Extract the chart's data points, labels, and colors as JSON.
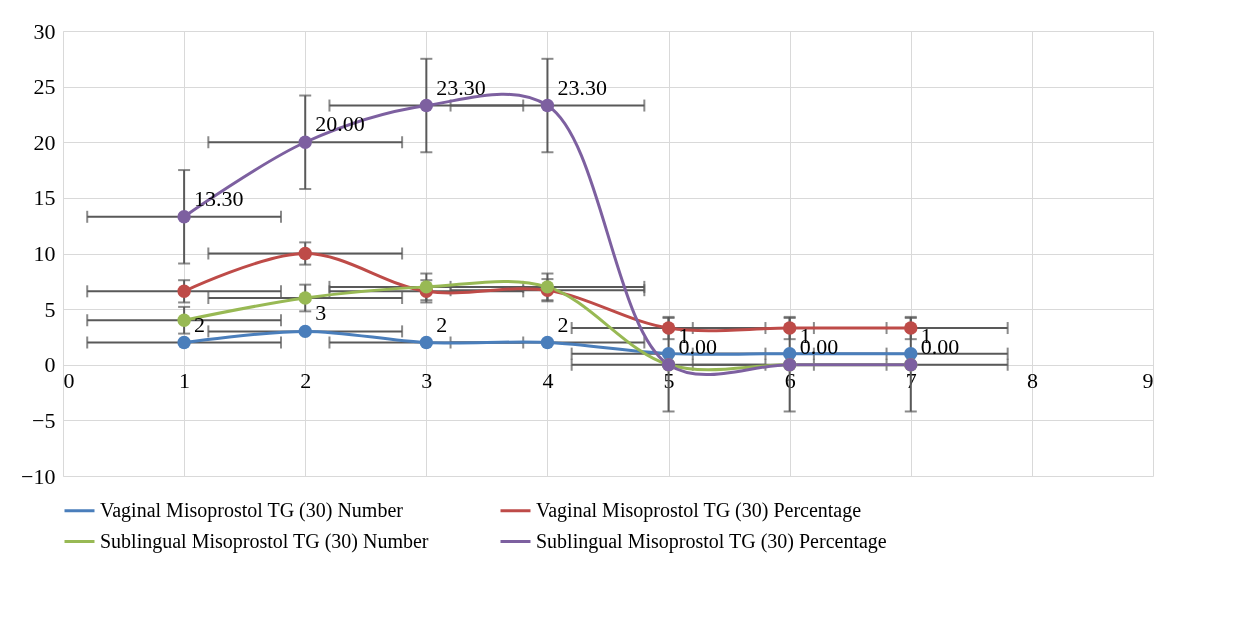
{
  "chart_data": {
    "type": "line",
    "x": [
      1,
      2,
      3,
      4,
      5,
      6,
      7
    ],
    "xlim": [
      0,
      9
    ],
    "xticks": [
      0,
      1,
      2,
      3,
      4,
      5,
      6,
      7,
      8,
      9
    ],
    "ylim": [
      -10,
      30
    ],
    "yticks": [
      -10,
      -5,
      0,
      5,
      10,
      15,
      20,
      25,
      30
    ],
    "grid": true,
    "legend": "bottom",
    "marker": "circle",
    "line_style": "solid",
    "series": [
      {
        "name": "Vaginal Misoprostol TG (30)  Number",
        "color": "#4a7ebb",
        "values": [
          2,
          3,
          2,
          2,
          1,
          1,
          1
        ],
        "xerrors": [
          0.8,
          0.8,
          0.8,
          0.8,
          0.8,
          0.8,
          0.8
        ],
        "value_labels": [
          "2",
          "3",
          "2",
          "2",
          "1",
          "1",
          "1"
        ]
      },
      {
        "name": "Vaginal Misoprostol TG (30)  Percentage",
        "color": "#be4b48",
        "values": [
          6.6,
          10,
          6.6,
          6.7,
          3.3,
          3.3,
          3.3
        ],
        "errors": [
          1,
          1,
          1,
          1,
          1,
          1,
          1
        ],
        "xerrors": [
          0.8,
          0.8,
          0.8,
          0.8,
          0.8,
          0.8,
          0.8
        ]
      },
      {
        "name": "Sublingual  Misoprostol TG (30) Number",
        "color": "#98b954",
        "values": [
          4,
          6,
          7,
          7,
          0,
          0,
          0
        ],
        "errors": [
          1.2,
          1.2,
          1.2,
          1.2,
          null,
          null,
          null
        ],
        "xerrors": [
          0.8,
          0.8,
          0.8,
          0.8,
          null,
          null,
          null
        ]
      },
      {
        "name": "Sublingual  Misoprostol TG (30) Percentage",
        "color": "#7d60a0",
        "values": [
          13.3,
          20,
          23.3,
          23.3,
          0,
          0,
          0
        ],
        "errors": [
          4.2,
          4.2,
          4.2,
          4.2,
          4.2,
          4.2,
          4.2
        ],
        "xerrors": [
          0.8,
          0.8,
          0.8,
          0.8,
          0.8,
          0.8,
          0.8
        ],
        "value_labels": [
          "13.30",
          "20.00",
          "23.30",
          "23.30",
          "0.00",
          "0.00",
          "0.00"
        ]
      }
    ]
  }
}
